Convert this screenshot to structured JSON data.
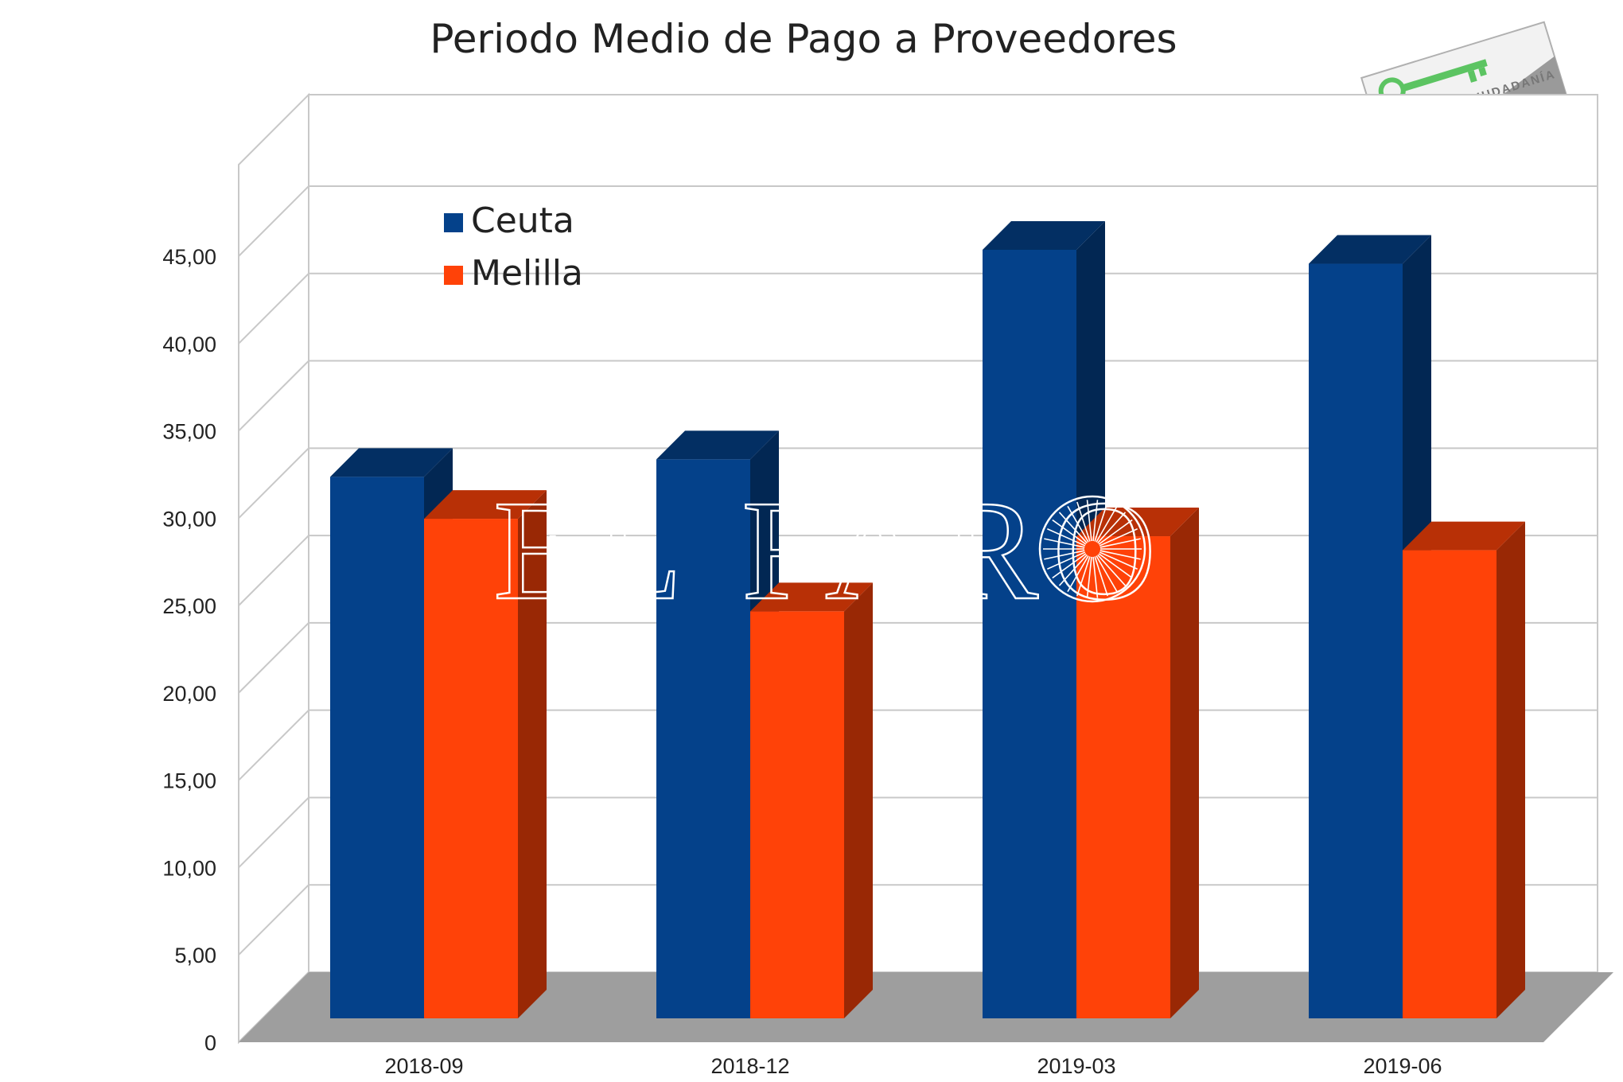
{
  "chart_data": {
    "type": "bar",
    "title": "Periodo Medio de Pago a Proveedores",
    "categories": [
      "2018-09",
      "2018-12",
      "2019-03",
      "2019-06"
    ],
    "series": [
      {
        "name": "Ceuta",
        "values": [
          31.0,
          32.0,
          44.0,
          43.2
        ],
        "color": "#04418a"
      },
      {
        "name": "Melilla",
        "values": [
          28.6,
          23.3,
          27.6,
          26.8
        ],
        "color": "#ff4208"
      }
    ],
    "y_ticks": [
      "0",
      "5,00",
      "10,00",
      "15,00",
      "20,00",
      "25,00",
      "30,00",
      "35,00",
      "40,00",
      "45,00"
    ],
    "ylim": [
      0,
      45
    ],
    "grid": true,
    "legend_position": "top-left",
    "style": "3d-column"
  },
  "watermark": {
    "text": "EL FARO"
  },
  "logo": {
    "text": "DIGNIDAD Y CIUDADANÍA"
  }
}
